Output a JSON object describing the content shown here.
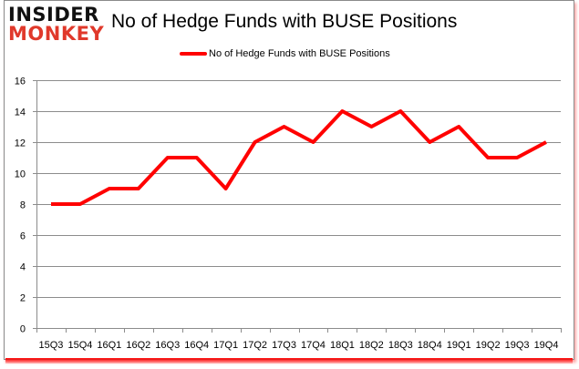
{
  "brand": {
    "logo_top": "INSIDER",
    "logo_bottom": "MONKEY",
    "logo_colors": {
      "top": "#111111",
      "bottom": "#e0392b"
    }
  },
  "chart": {
    "title": "No of Hedge Funds with BUSE Positions",
    "legend_label": "No of Hedge Funds with BUSE Positions",
    "line_color": "#ff0000",
    "grid_color": "#8c8c8c"
  },
  "chart_data": {
    "type": "line",
    "title": "No of Hedge Funds with BUSE Positions",
    "xlabel": "",
    "ylabel": "",
    "ylim": [
      0,
      16
    ],
    "yticks": [
      0,
      2,
      4,
      6,
      8,
      10,
      12,
      14,
      16
    ],
    "grid": true,
    "legend_position": "top",
    "categories": [
      "15Q3",
      "15Q4",
      "16Q1",
      "16Q2",
      "16Q3",
      "16Q4",
      "17Q1",
      "17Q2",
      "17Q3",
      "17Q4",
      "18Q1",
      "18Q2",
      "18Q3",
      "18Q4",
      "19Q1",
      "19Q2",
      "19Q3",
      "19Q4"
    ],
    "series": [
      {
        "name": "No of Hedge Funds with BUSE Positions",
        "color": "#ff0000",
        "values": [
          8,
          8,
          9,
          9,
          11,
          11,
          9,
          12,
          13,
          12,
          14,
          13,
          14,
          12,
          13,
          11,
          11,
          12
        ]
      }
    ]
  }
}
